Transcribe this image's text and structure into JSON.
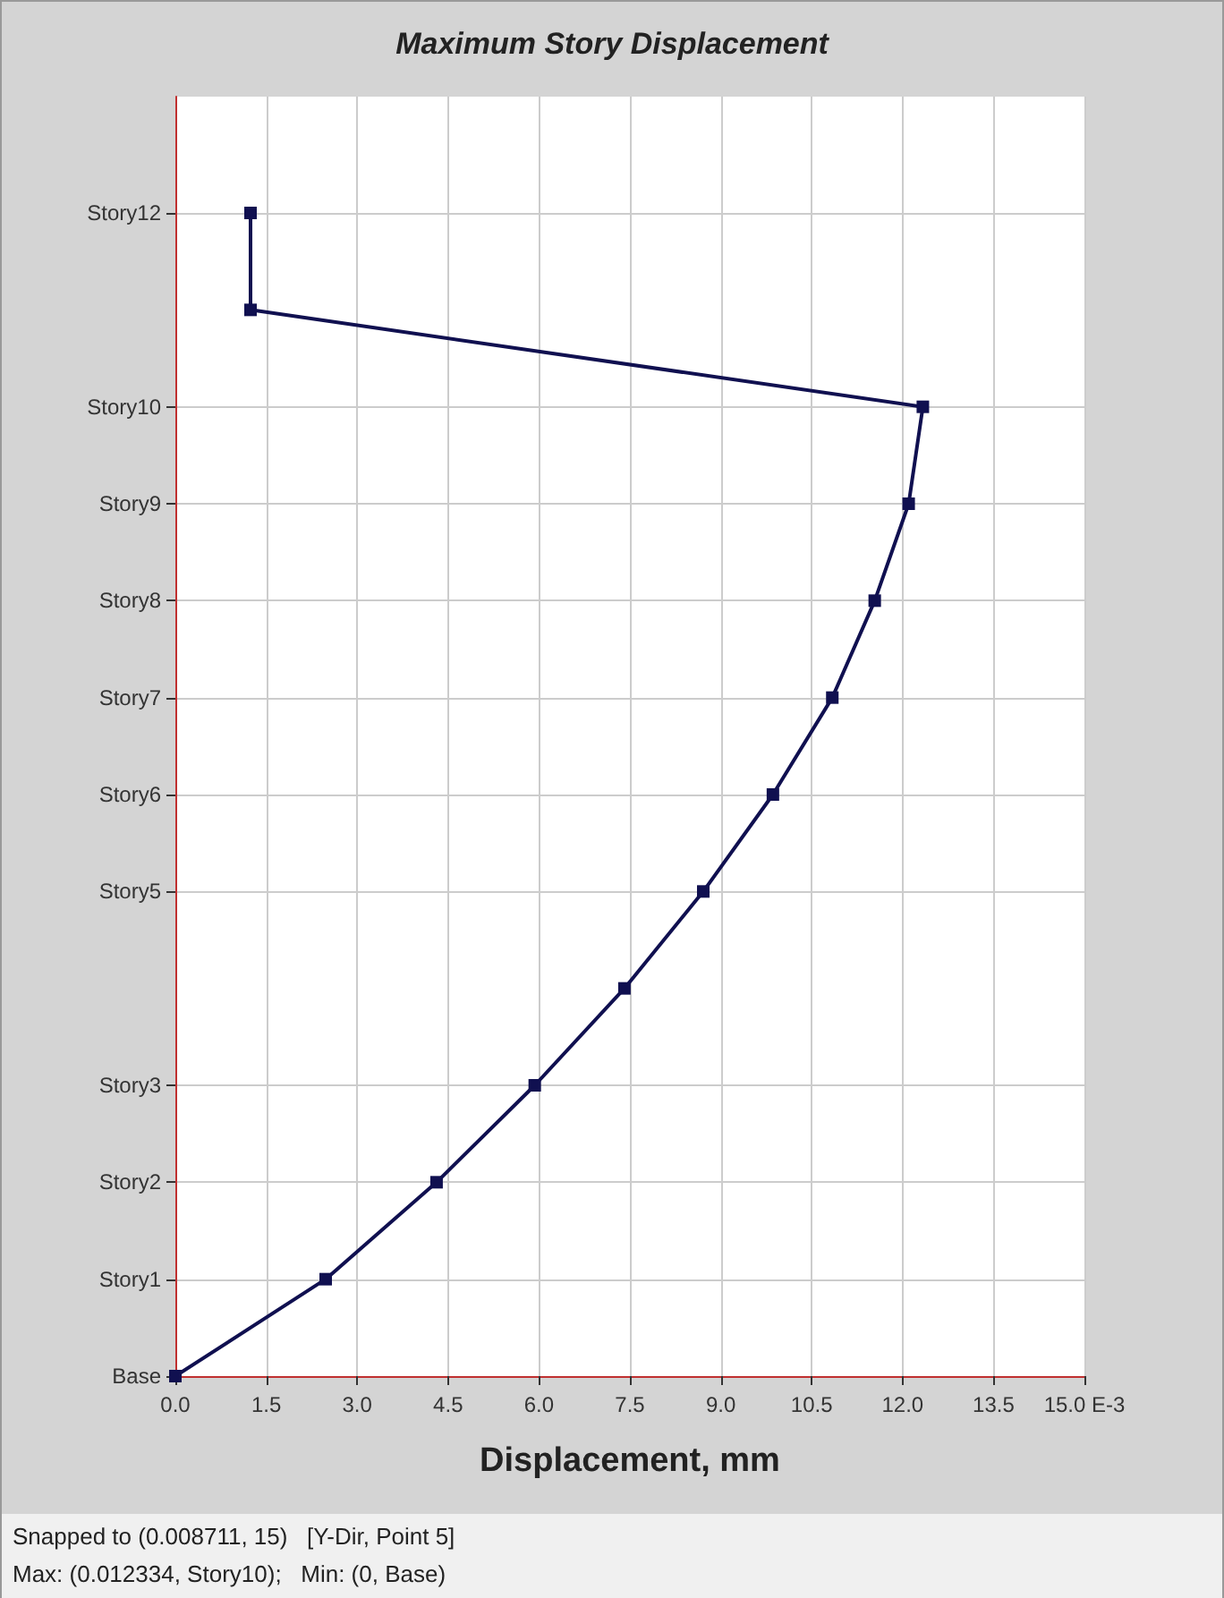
{
  "chart_data": {
    "type": "line",
    "orientation": "horizontal",
    "title": "Maximum Story Displacement",
    "xlabel": "Displacement, mm",
    "categories": [
      "Story12",
      null,
      "Story10",
      "Story9",
      "Story8",
      "Story7",
      "Story6",
      "Story5",
      null,
      "Story3",
      "Story2",
      "Story1",
      "Base"
    ],
    "series": [
      {
        "color": "#101050",
        "values": [
          1.24,
          1.24,
          12.334,
          12.1,
          11.54,
          10.84,
          9.86,
          8.711,
          7.41,
          5.93,
          4.31,
          2.48,
          0
        ]
      }
    ],
    "xlim": [
      0,
      15
    ],
    "xticks": [
      {
        "value": 0,
        "label": "0.0"
      },
      {
        "value": 1.5,
        "label": "1.5"
      },
      {
        "value": 3,
        "label": "3.0"
      },
      {
        "value": 4.5,
        "label": "4.5"
      },
      {
        "value": 6,
        "label": "6.0"
      },
      {
        "value": 7.5,
        "label": "7.5"
      },
      {
        "value": 9,
        "label": "9.0"
      },
      {
        "value": 10.5,
        "label": "10.5"
      },
      {
        "value": 12,
        "label": "12.0"
      },
      {
        "value": 13.5,
        "label": "13.5"
      },
      {
        "value": 15,
        "label": "15.0 E-3"
      }
    ],
    "annotations": [
      "Snapped to (0.008711, 15)   [Y-Dir, Point 5]",
      "Max: (0.012334, Story10);   Min: (0, Base)"
    ],
    "grid": true,
    "marker": "square",
    "line_style": "solid"
  }
}
